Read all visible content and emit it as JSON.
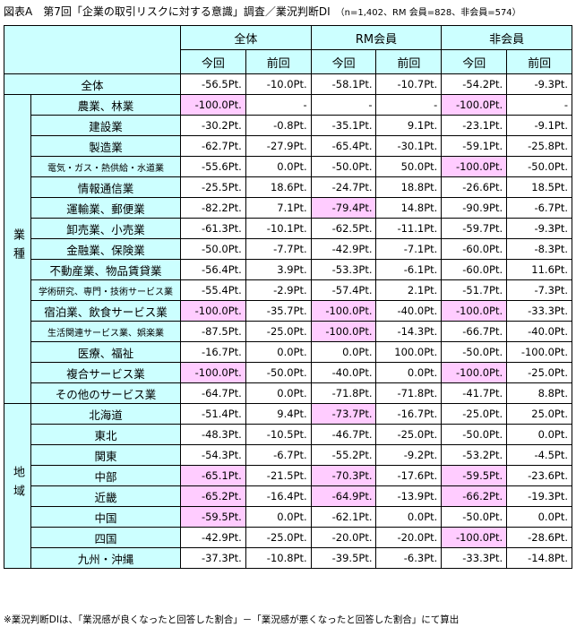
{
  "title": "図表A　第7回「企業の取引リスクに対する意識」調査／業況判断DI",
  "subtitle": "（n=1,402、RM 会員=828、非会員=574）",
  "header": {
    "groups": [
      "全体",
      "RM会員",
      "非会員"
    ],
    "periods": [
      "今回",
      "前回",
      "今回",
      "前回",
      "今回",
      "前回"
    ]
  },
  "total_row": {
    "label": "全体",
    "cells": [
      "-56.5Pt.",
      "-10.0Pt.",
      "-58.1Pt.",
      "-10.7Pt.",
      "-54.2Pt.",
      "-9.3Pt."
    ]
  },
  "sections": [
    {
      "name": "業種",
      "rows": [
        {
          "label": "農業、林業",
          "cells": [
            "-100.0Pt.",
            "-",
            "-",
            "-",
            "-100.0Pt.",
            "-"
          ]
        },
        {
          "label": "建設業",
          "cells": [
            "-30.2Pt.",
            "-0.8Pt.",
            "-35.1Pt.",
            "9.1Pt.",
            "-23.1Pt.",
            "-9.1Pt."
          ]
        },
        {
          "label": "製造業",
          "cells": [
            "-62.7Pt.",
            "-27.9Pt.",
            "-65.4Pt.",
            "-30.1Pt.",
            "-59.1Pt.",
            "-25.8Pt."
          ]
        },
        {
          "label": "電気・ガス・熱供給・水道業",
          "cells": [
            "-55.6Pt.",
            "0.0Pt.",
            "-50.0Pt.",
            "50.0Pt.",
            "-100.0Pt.",
            "-50.0Pt."
          ]
        },
        {
          "label": "情報通信業",
          "cells": [
            "-25.5Pt.",
            "18.6Pt.",
            "-24.7Pt.",
            "18.8Pt.",
            "-26.6Pt.",
            "18.5Pt."
          ]
        },
        {
          "label": "運輸業、郵便業",
          "cells": [
            "-82.2Pt.",
            "7.1Pt.",
            "-79.4Pt.",
            "14.8Pt.",
            "-90.9Pt.",
            "-6.7Pt."
          ]
        },
        {
          "label": "卸売業、小売業",
          "cells": [
            "-61.3Pt.",
            "-10.1Pt.",
            "-62.5Pt.",
            "-11.1Pt.",
            "-59.7Pt.",
            "-9.3Pt."
          ]
        },
        {
          "label": "金融業、保険業",
          "cells": [
            "-50.0Pt.",
            "-7.7Pt.",
            "-42.9Pt.",
            "-7.1Pt.",
            "-60.0Pt.",
            "-8.3Pt."
          ]
        },
        {
          "label": "不動産業、物品賃貸業",
          "cells": [
            "-56.4Pt.",
            "3.9Pt.",
            "-53.3Pt.",
            "-6.1Pt.",
            "-60.0Pt.",
            "11.6Pt."
          ]
        },
        {
          "label": "学術研究、専門・技術サービス業",
          "cells": [
            "-55.4Pt.",
            "-2.9Pt.",
            "-57.4Pt.",
            "2.1Pt.",
            "-51.7Pt.",
            "-7.3Pt."
          ]
        },
        {
          "label": "宿泊業、飲食サービス業",
          "cells": [
            "-100.0Pt.",
            "-35.7Pt.",
            "-100.0Pt.",
            "-40.0Pt.",
            "-100.0Pt.",
            "-33.3Pt."
          ]
        },
        {
          "label": "生活関連サービス業、娯楽業",
          "cells": [
            "-87.5Pt.",
            "-25.0Pt.",
            "-100.0Pt.",
            "-14.3Pt.",
            "-66.7Pt.",
            "-40.0Pt."
          ]
        },
        {
          "label": "医療、福祉",
          "cells": [
            "-16.7Pt.",
            "0.0Pt.",
            "0.0Pt.",
            "100.0Pt.",
            "-50.0Pt.",
            "-100.0Pt."
          ]
        },
        {
          "label": "複合サービス業",
          "cells": [
            "-100.0Pt.",
            "-50.0Pt.",
            "-40.0Pt.",
            "0.0Pt.",
            "-100.0Pt.",
            "-25.0Pt."
          ]
        },
        {
          "label": "その他のサービス業",
          "cells": [
            "-64.7Pt.",
            "0.0Pt.",
            "-71.8Pt.",
            "-71.8Pt.",
            "-41.7Pt.",
            "8.8Pt."
          ]
        }
      ]
    },
    {
      "name": "地域",
      "rows": [
        {
          "label": "北海道",
          "cells": [
            "-51.4Pt.",
            "9.4Pt.",
            "-73.7Pt.",
            "-16.7Pt.",
            "-25.0Pt.",
            "25.0Pt."
          ]
        },
        {
          "label": "東北",
          "cells": [
            "-48.3Pt.",
            "-10.5Pt.",
            "-46.7Pt.",
            "-25.0Pt.",
            "-50.0Pt.",
            "0.0Pt."
          ]
        },
        {
          "label": "関東",
          "cells": [
            "-54.3Pt.",
            "-6.7Pt.",
            "-55.2Pt.",
            "-9.2Pt.",
            "-53.2Pt.",
            "-4.5Pt."
          ]
        },
        {
          "label": "中部",
          "cells": [
            "-65.1Pt.",
            "-21.5Pt.",
            "-70.3Pt.",
            "-17.6Pt.",
            "-59.5Pt.",
            "-23.6Pt."
          ]
        },
        {
          "label": "近畿",
          "cells": [
            "-65.2Pt.",
            "-16.4Pt.",
            "-64.9Pt.",
            "-13.9Pt.",
            "-66.2Pt.",
            "-19.3Pt."
          ]
        },
        {
          "label": "中国",
          "cells": [
            "-59.5Pt.",
            "0.0Pt.",
            "-62.1Pt.",
            "0.0Pt.",
            "-50.0Pt.",
            "0.0Pt."
          ]
        },
        {
          "label": "四国",
          "cells": [
            "-42.9Pt.",
            "-25.0Pt.",
            "-20.0Pt.",
            "-20.0Pt.",
            "-100.0Pt.",
            "-28.6Pt."
          ]
        },
        {
          "label": "九州・沖縄",
          "cells": [
            "-37.3Pt.",
            "-10.8Pt.",
            "-39.5Pt.",
            "-6.3Pt.",
            "-33.3Pt.",
            "-14.8Pt."
          ]
        }
      ]
    }
  ],
  "footnote": "※業況判断DIは、「業況感が良くなったと回答した割合」－「業況感が悪くなったと回答した割合」にて算出"
}
